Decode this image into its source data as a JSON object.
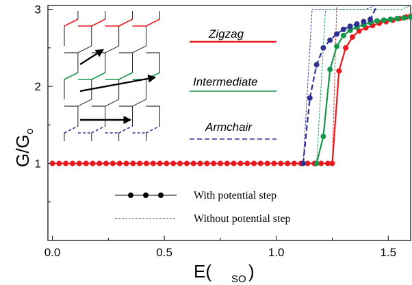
{
  "chart_data": {
    "type": "line",
    "xlabel": "E(",
    "xlabel_sub": "SO",
    "xlabel_close": ")",
    "ylabel": "G/G",
    "ylabel_sub": "o",
    "xlim": [
      -0.02,
      1.6
    ],
    "ylim": [
      0,
      3.05
    ],
    "x_ticks": [
      "0.0",
      "0.5",
      "1.0",
      "1.5"
    ],
    "x_tick_values": [
      0.0,
      0.5,
      1.0,
      1.5
    ],
    "y_ticks": [
      "1",
      "2",
      "3"
    ],
    "y_tick_values": [
      1,
      2,
      3
    ],
    "grid": false,
    "series": [
      {
        "name": "Zigzag",
        "color": "#e8191f",
        "style": "solid-markers",
        "x": [
          0.0,
          0.03,
          0.06,
          0.09,
          0.12,
          0.15,
          0.18,
          0.21,
          0.24,
          0.27,
          0.3,
          0.33,
          0.36,
          0.39,
          0.42,
          0.45,
          0.48,
          0.51,
          0.54,
          0.57,
          0.6,
          0.63,
          0.66,
          0.69,
          0.72,
          0.75,
          0.78,
          0.81,
          0.84,
          0.87,
          0.9,
          0.93,
          0.96,
          0.99,
          1.02,
          1.05,
          1.08,
          1.11,
          1.14,
          1.17,
          1.2,
          1.23,
          1.25,
          1.28,
          1.31,
          1.34,
          1.37,
          1.4,
          1.43,
          1.46,
          1.49,
          1.52,
          1.55,
          1.58,
          1.6
        ],
        "y": [
          1,
          1,
          1,
          1,
          1,
          1,
          1,
          1,
          1,
          1,
          1,
          1,
          1,
          1,
          1,
          1,
          1,
          1,
          1,
          1,
          1,
          1,
          1,
          1,
          1,
          1,
          1,
          1,
          1,
          1,
          1,
          1,
          1,
          1,
          1,
          1,
          1,
          1,
          1,
          1,
          1,
          1,
          1,
          2.2,
          2.5,
          2.64,
          2.72,
          2.76,
          2.79,
          2.82,
          2.84,
          2.86,
          2.88,
          2.9,
          2.91
        ]
      },
      {
        "name": "Intermediate",
        "color": "#14964b",
        "style": "solid-markers",
        "x": [
          1.18,
          1.21,
          1.24,
          1.27,
          1.3,
          1.33,
          1.36,
          1.39,
          1.42,
          1.45,
          1.48,
          1.51,
          1.54,
          1.57,
          1.6
        ],
        "y": [
          1,
          1.35,
          2.22,
          2.52,
          2.66,
          2.73,
          2.77,
          2.8,
          2.83,
          2.85,
          2.86,
          2.87,
          2.88,
          2.89,
          2.9
        ]
      },
      {
        "name": "Armchair",
        "color": "#2e3192",
        "style": "dashed-markers",
        "x": [
          1.12,
          1.15,
          1.18,
          1.21,
          1.24,
          1.27,
          1.3,
          1.33,
          1.36,
          1.39,
          1.42,
          1.45
        ],
        "y": [
          1,
          1.85,
          2.28,
          2.5,
          2.6,
          2.68,
          2.74,
          2.78,
          2.81,
          2.84,
          2.87,
          3.1
        ]
      }
    ],
    "no_step_curves": [
      {
        "name": "Armchair",
        "color": "#2e3192",
        "x": [
          1.12,
          1.16,
          1.2,
          1.4,
          1.44
        ],
        "y": [
          1,
          3,
          3,
          3,
          3.1
        ]
      },
      {
        "name": "Intermediate",
        "color": "#14964b",
        "x": [
          1.18,
          1.22,
          1.26,
          1.56,
          1.6
        ],
        "y": [
          1,
          3,
          3,
          3,
          3.1
        ]
      },
      {
        "name": "Zigzag",
        "color": "#e8191f",
        "x": [
          1.25,
          1.27
        ],
        "y": [
          1,
          3.1
        ]
      }
    ],
    "legend_labels": {
      "zigzag": "Zigzag",
      "intermediate": "Intermediate",
      "armchair": "Armchair",
      "with_step": "With potential step",
      "without_step": "Without potential step"
    }
  }
}
